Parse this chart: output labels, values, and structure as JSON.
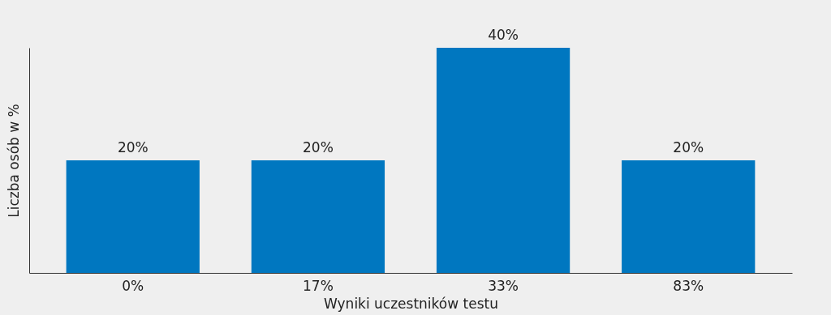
{
  "chart_data": {
    "type": "bar",
    "xlabel": "Wyniki uczestników testu",
    "ylabel": "Liczba osób w %",
    "categories": [
      "0%",
      "17%",
      "33%",
      "83%"
    ],
    "values": [
      20,
      20,
      40,
      20
    ],
    "value_labels": [
      "20%",
      "20%",
      "40%",
      "20%"
    ],
    "color": "#0077c0",
    "ylim": [
      0,
      40
    ],
    "tick_labels": "x"
  }
}
